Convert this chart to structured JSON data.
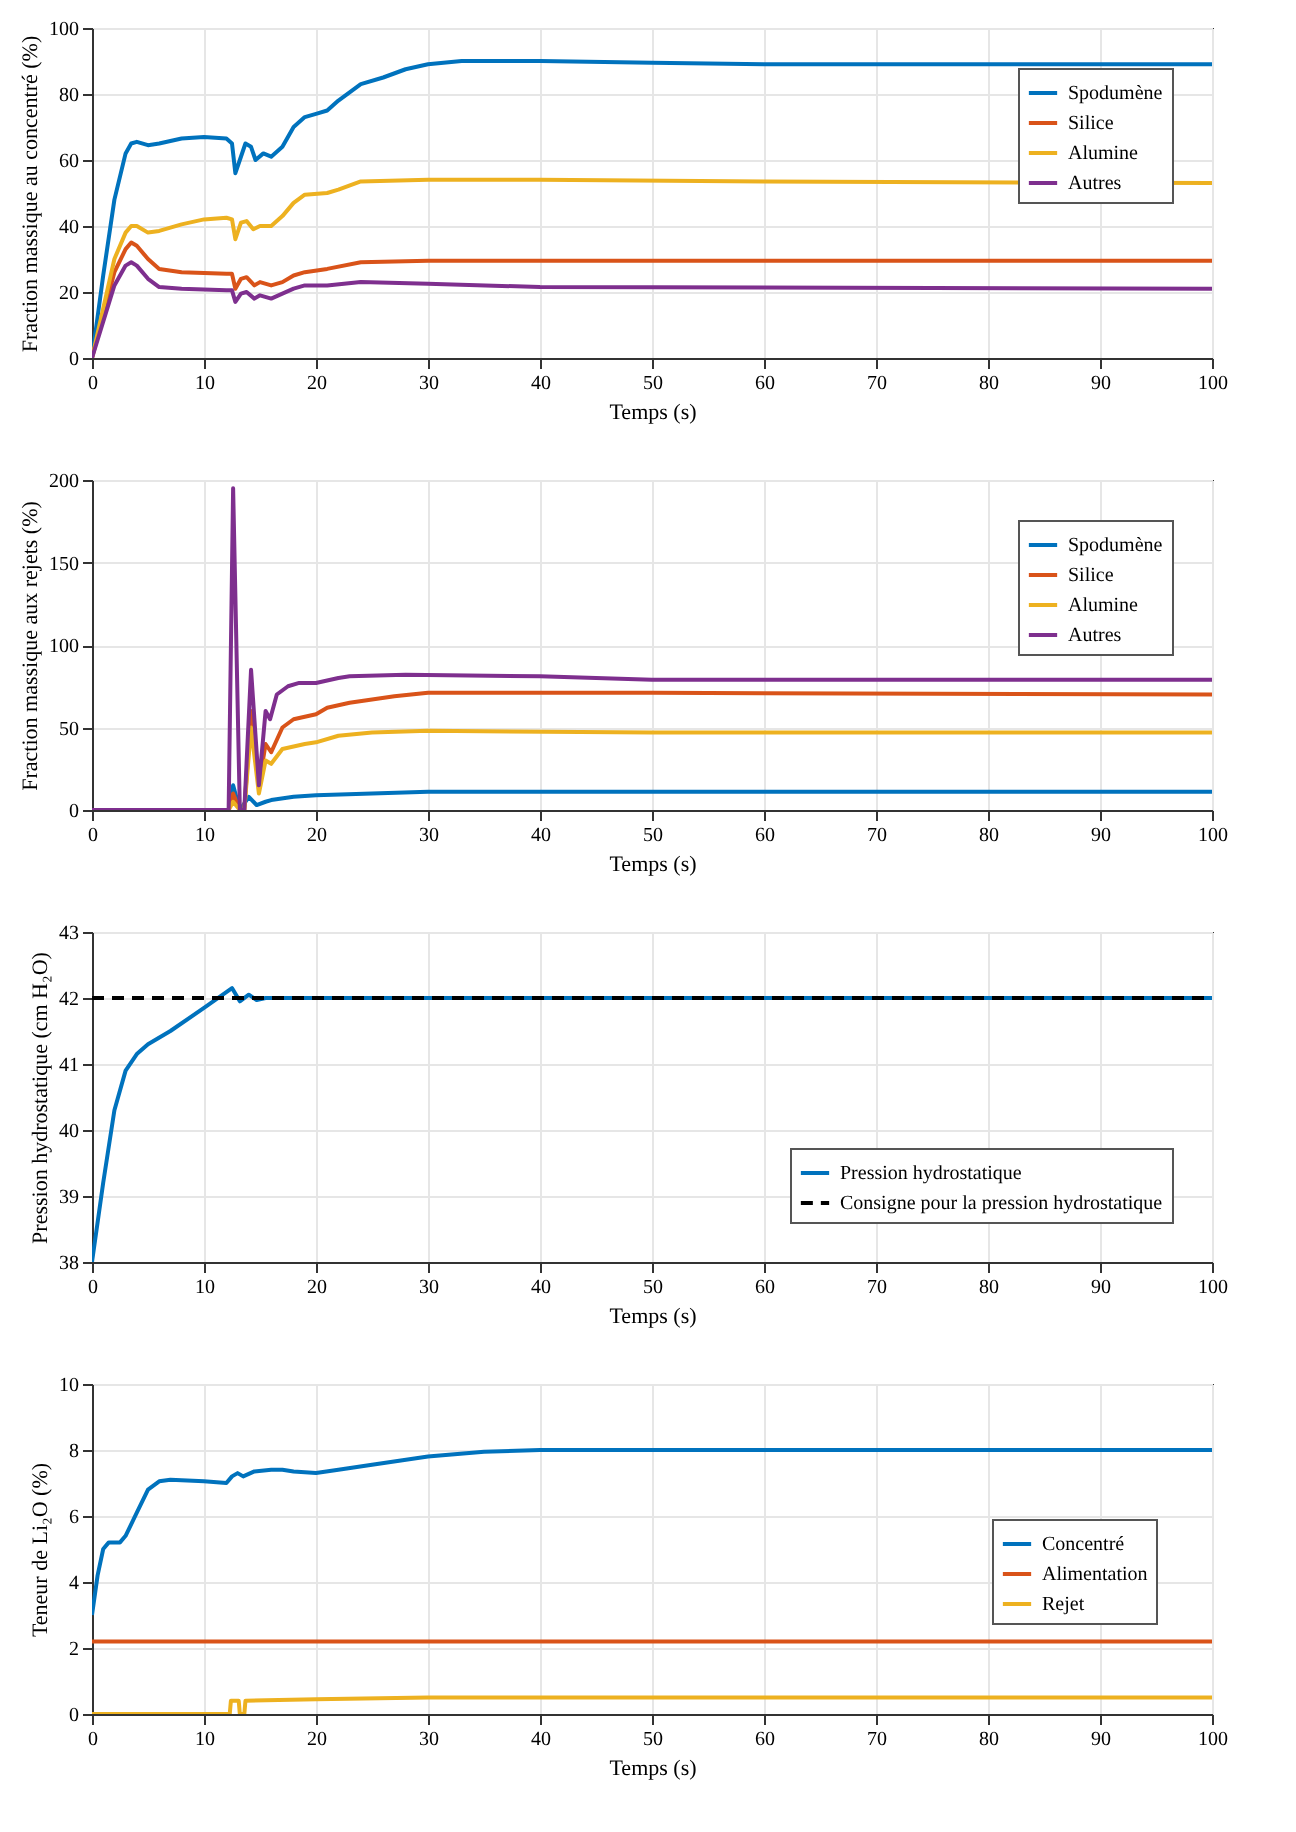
{
  "chart_data": [
    {
      "type": "line",
      "xlabel": "Temps (s)",
      "ylabel": "Fraction massique au concentré (%)",
      "xlim": [
        0,
        100
      ],
      "xticks": [
        0,
        10,
        20,
        30,
        40,
        50,
        60,
        70,
        80,
        90,
        100
      ],
      "ylim": [
        0,
        100
      ],
      "yticks": [
        0,
        20,
        40,
        60,
        80,
        100
      ],
      "grid": true,
      "legend": "top right",
      "series": [
        {
          "name": "Spodumène",
          "color": "#0072bd",
          "x": [
            0,
            1,
            2,
            3,
            3.5,
            4,
            5,
            6,
            8,
            10,
            12,
            12.5,
            12.8,
            13.2,
            13.7,
            14.2,
            14.6,
            15.3,
            16,
            17,
            18,
            19,
            20,
            21,
            22,
            24,
            26,
            28,
            30,
            33,
            40,
            50,
            60,
            100
          ],
          "values": [
            0,
            25,
            48,
            62,
            65,
            65.5,
            64.5,
            65,
            66.5,
            67,
            66.5,
            65,
            56,
            60,
            65,
            64,
            60,
            62,
            61,
            64,
            70,
            73,
            74,
            75,
            78,
            83,
            85,
            87.5,
            89,
            90,
            90,
            89.5,
            89,
            89
          ]
        },
        {
          "name": "Silice",
          "color": "#d95319",
          "x": [
            0,
            1,
            2,
            3,
            3.5,
            4,
            5,
            6,
            8,
            12,
            12.5,
            12.8,
            13.3,
            13.8,
            14.5,
            15,
            16,
            17,
            18,
            19,
            21,
            24,
            30,
            100
          ],
          "values": [
            0,
            13,
            26,
            33,
            35,
            34,
            30,
            27,
            26,
            25.5,
            25.5,
            21,
            24,
            24.5,
            22,
            23,
            22,
            23,
            25,
            26,
            27,
            29,
            29.5,
            29.5
          ]
        },
        {
          "name": "Alumine",
          "color": "#edb120",
          "x": [
            0,
            1,
            2,
            3,
            3.5,
            4,
            5,
            6,
            8,
            10,
            12,
            12.5,
            12.8,
            13.3,
            13.8,
            14.4,
            15,
            16,
            17,
            18,
            19,
            21,
            22,
            24,
            30,
            40,
            60,
            100
          ],
          "values": [
            0,
            15,
            30,
            38,
            40,
            40,
            38,
            38.5,
            40.5,
            42,
            42.5,
            42,
            36,
            41,
            41.5,
            39,
            40,
            40,
            43,
            47,
            49.5,
            50,
            51,
            53.5,
            54,
            54,
            53.5,
            53
          ]
        },
        {
          "name": "Autres",
          "color": "#7e2f8e",
          "x": [
            0,
            1,
            2,
            3,
            3.5,
            4,
            5,
            6,
            8,
            12,
            12.5,
            12.8,
            13.3,
            13.8,
            14.5,
            15,
            16,
            18,
            19,
            21,
            24,
            30,
            40,
            100
          ],
          "values": [
            0,
            11,
            22,
            28,
            29,
            28,
            24,
            21.5,
            21,
            20.5,
            20.5,
            17,
            19.5,
            20,
            18,
            19,
            18,
            21,
            22,
            22,
            23,
            22.5,
            21.5,
            21
          ]
        }
      ]
    },
    {
      "type": "line",
      "xlabel": "Temps (s)",
      "ylabel": "Fraction massique aux rejets (%)",
      "xlim": [
        0,
        100
      ],
      "xticks": [
        0,
        10,
        20,
        30,
        40,
        50,
        60,
        70,
        80,
        90,
        100
      ],
      "ylim": [
        0,
        200
      ],
      "yticks": [
        0,
        50,
        100,
        150,
        200
      ],
      "grid": true,
      "legend": "top right",
      "series": [
        {
          "name": "Spodumène",
          "color": "#0072bd",
          "x": [
            0,
            12.2,
            12.6,
            13.2,
            14,
            14.7,
            15.5,
            16,
            18,
            20,
            25,
            30,
            100
          ],
          "values": [
            0,
            0,
            15,
            0,
            8,
            3,
            5,
            6,
            8,
            9,
            10,
            11,
            11
          ]
        },
        {
          "name": "Silice",
          "color": "#d95319",
          "x": [
            0,
            12.2,
            12.6,
            13.2,
            13.6,
            14.2,
            14.9,
            15.5,
            16,
            17,
            18,
            20,
            21,
            23,
            27,
            30,
            50,
            100
          ],
          "values": [
            0,
            0,
            10,
            0,
            0,
            60,
            15,
            40,
            35,
            50,
            55,
            58,
            62,
            65,
            69,
            71,
            71,
            70
          ]
        },
        {
          "name": "Alumine",
          "color": "#edb120",
          "x": [
            0,
            12.2,
            12.6,
            13.2,
            13.6,
            14.2,
            14.9,
            15.5,
            16,
            17,
            19,
            20,
            22,
            25,
            30,
            50,
            100
          ],
          "values": [
            0,
            0,
            5,
            0,
            0,
            50,
            10,
            30,
            28,
            37,
            40,
            41,
            45,
            47,
            48,
            47,
            47
          ]
        },
        {
          "name": "Autres",
          "color": "#7e2f8e",
          "x": [
            0,
            12.2,
            12.6,
            13.2,
            13.6,
            14.2,
            14.9,
            15.5,
            15.9,
            16.5,
            17.5,
            18.5,
            20,
            22,
            23,
            28,
            40,
            50,
            100
          ],
          "values": [
            0,
            0,
            195,
            0,
            0,
            85,
            15,
            60,
            55,
            70,
            75,
            77,
            77,
            80,
            81,
            82,
            81,
            79,
            79
          ]
        }
      ]
    },
    {
      "type": "line",
      "xlabel": "Temps (s)",
      "ylabel": "Pression hydrostatique (cm H₂O)",
      "xlim": [
        0,
        100
      ],
      "xticks": [
        0,
        10,
        20,
        30,
        40,
        50,
        60,
        70,
        80,
        90,
        100
      ],
      "ylim": [
        38,
        43
      ],
      "yticks": [
        38,
        39,
        40,
        41,
        42,
        43
      ],
      "grid": true,
      "legend": "bottom right",
      "series": [
        {
          "name": "Pression hydrostatique",
          "color": "#0072bd",
          "x": [
            0,
            1,
            2,
            3,
            4,
            5,
            7,
            10,
            12.5,
            13.2,
            14,
            14.7,
            15.5,
            100
          ],
          "values": [
            38,
            39.2,
            40.3,
            40.9,
            41.15,
            41.3,
            41.5,
            41.85,
            42.15,
            41.95,
            42.05,
            41.97,
            42,
            42
          ]
        },
        {
          "name": "Consigne pour la pression hydrostatique",
          "color": "#000000",
          "line_style": "dashed",
          "x": [
            0,
            100
          ],
          "values": [
            42,
            42
          ]
        }
      ]
    },
    {
      "type": "line",
      "xlabel": "Temps (s)",
      "ylabel": "Teneur de Li₂O (%)",
      "xlim": [
        0,
        100
      ],
      "xticks": [
        0,
        10,
        20,
        30,
        40,
        50,
        60,
        70,
        80,
        90,
        100
      ],
      "ylim": [
        0,
        10
      ],
      "yticks": [
        0,
        2,
        4,
        6,
        8,
        10
      ],
      "grid": true,
      "legend": "right",
      "series": [
        {
          "name": "Concentré",
          "color": "#0072bd",
          "x": [
            0,
            0.5,
            1,
            1.5,
            2.5,
            3,
            4,
            5,
            6,
            7,
            10,
            12,
            12.5,
            13,
            13.5,
            14.5,
            16,
            17,
            18,
            20,
            22,
            25,
            30,
            35,
            40,
            100
          ],
          "values": [
            3,
            4.2,
            5,
            5.2,
            5.2,
            5.4,
            6.1,
            6.8,
            7.05,
            7.1,
            7.05,
            7,
            7.2,
            7.3,
            7.2,
            7.35,
            7.4,
            7.4,
            7.35,
            7.3,
            7.4,
            7.55,
            7.8,
            7.95,
            8,
            8
          ]
        },
        {
          "name": "Alimentation",
          "color": "#d95319",
          "x": [
            0,
            100
          ],
          "values": [
            2.2,
            2.2
          ]
        },
        {
          "name": "Rejet",
          "color": "#edb120",
          "x": [
            0,
            12.3,
            12.4,
            13.1,
            13.2,
            13.6,
            13.7,
            20,
            30,
            100
          ],
          "values": [
            0,
            0,
            0.4,
            0.4,
            0,
            0,
            0.4,
            0.45,
            0.5,
            0.5
          ]
        }
      ]
    }
  ]
}
